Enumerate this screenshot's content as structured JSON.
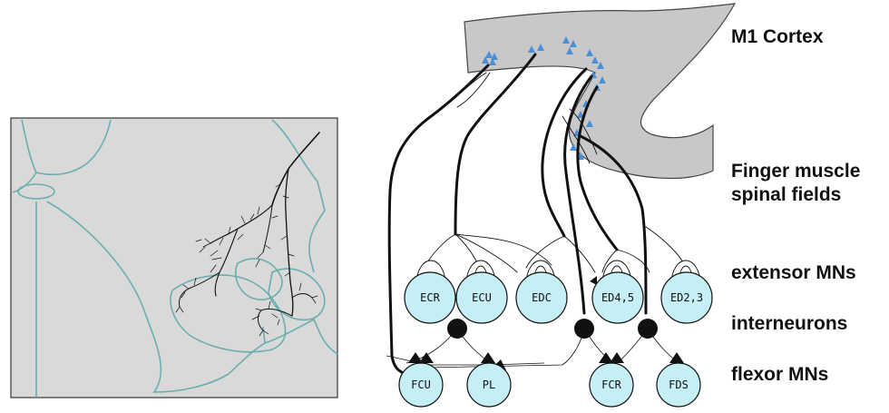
{
  "labels": {
    "m1_cortex": "M1 Cortex",
    "finger_fields_line1": "Finger muscle",
    "finger_fields_line2": "spinal fields",
    "extensor": "extensor MNs",
    "interneurons": "interneurons",
    "flexor": "flexor MNs"
  },
  "extensor_mns": [
    "ECR",
    "ECU",
    "EDC",
    "ED4,5",
    "ED2,3"
  ],
  "flexor_mns": [
    "FCU",
    "PL",
    "FCR",
    "FDS"
  ],
  "colors": {
    "panel_gray": "#d9d9d9",
    "cortex_gray": "#c8c8c8",
    "outline_teal": "#6aaeb0",
    "mn_fill": "#c5eef5",
    "cell_blue": "#4a8fd8",
    "ink": "#111111"
  }
}
